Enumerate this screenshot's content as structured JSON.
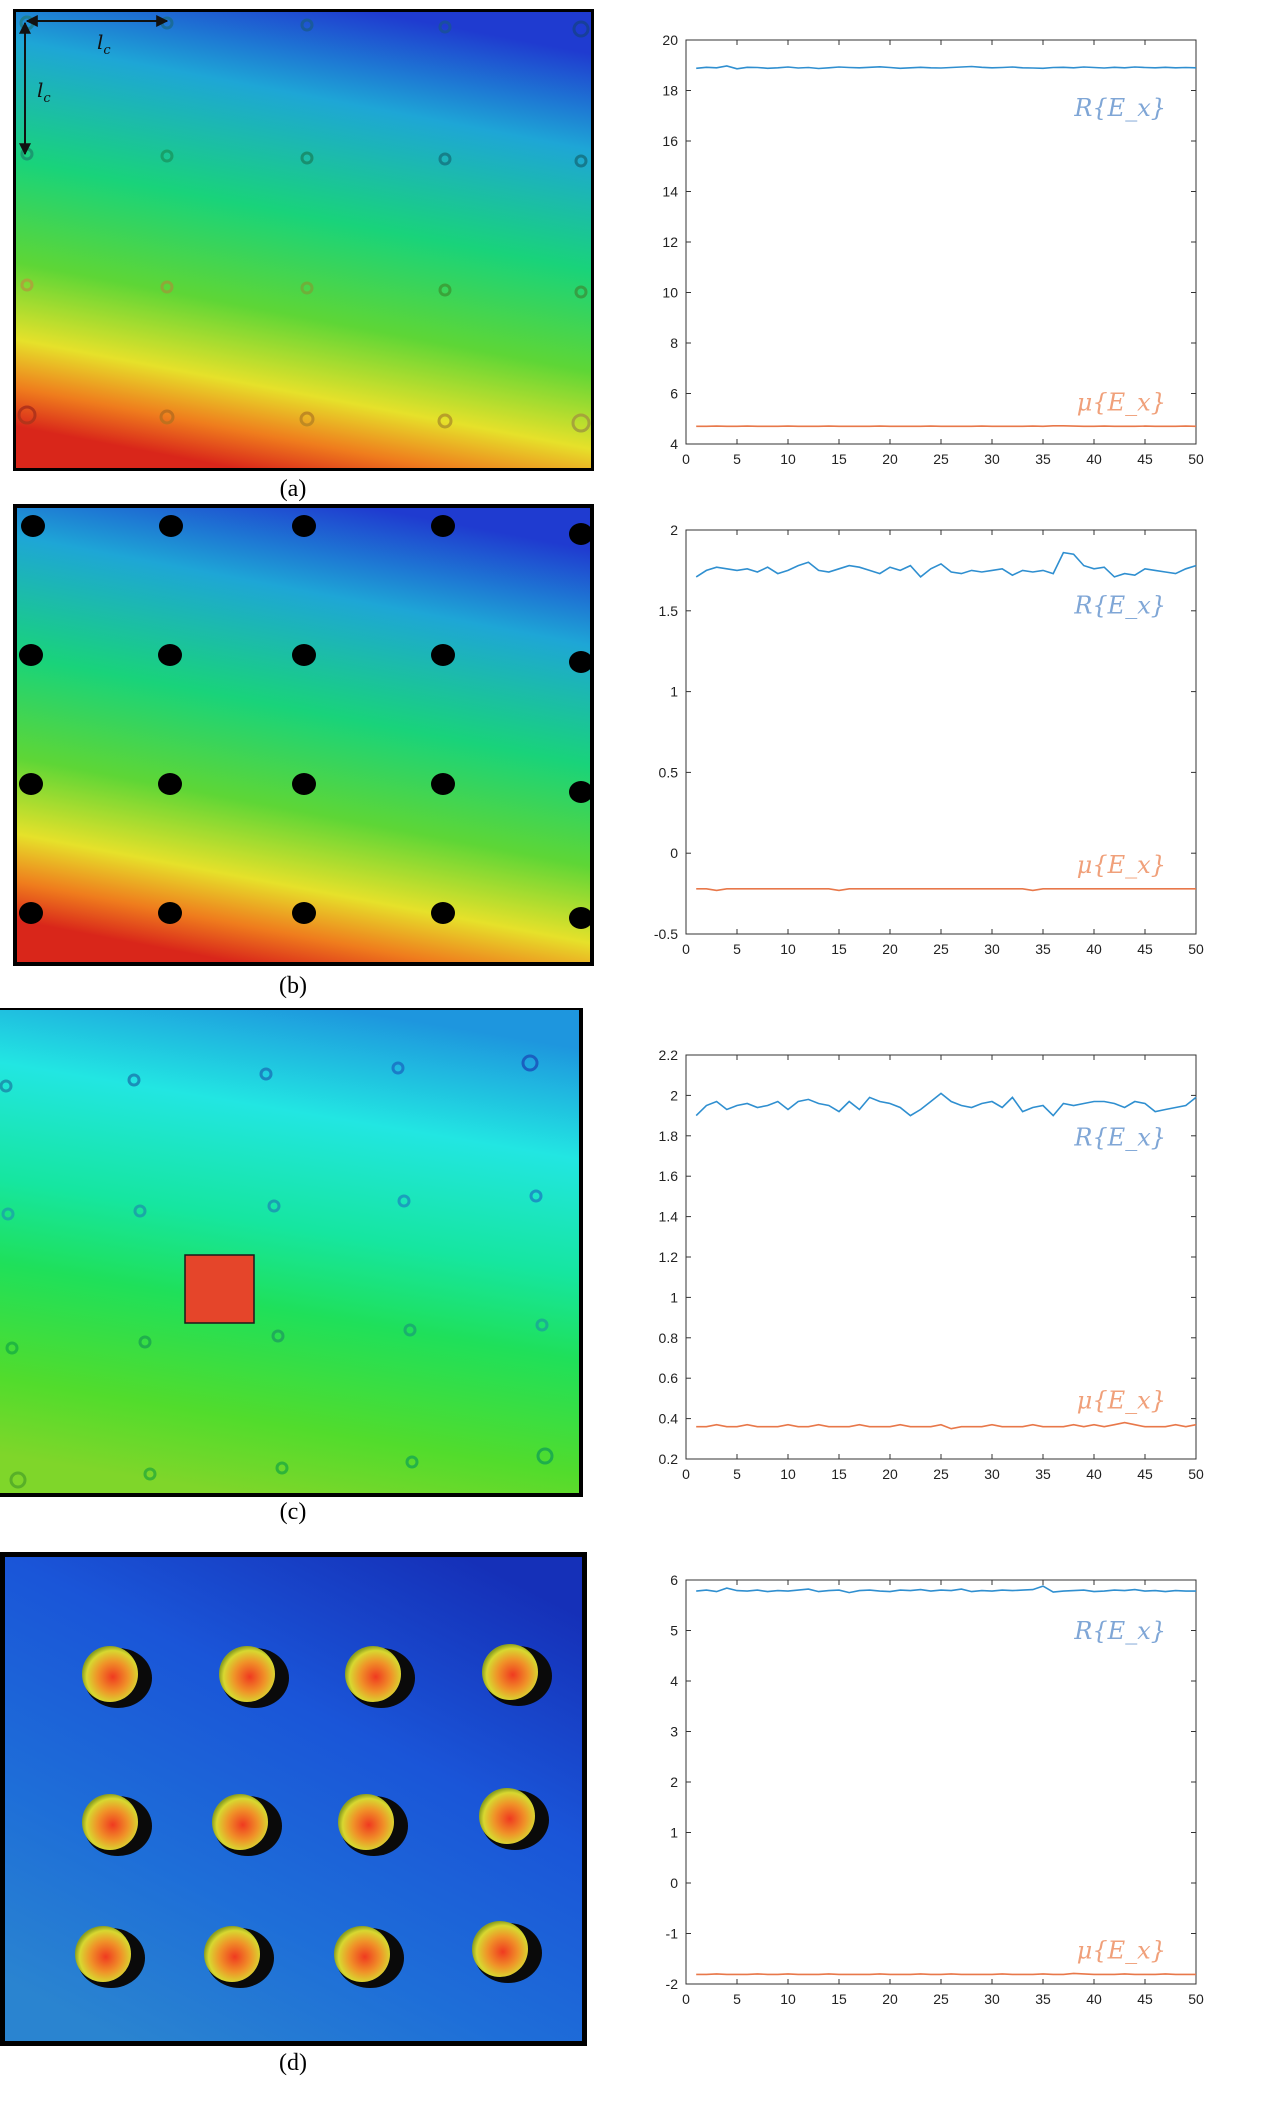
{
  "colors": {
    "R_line": "#2f8fd0",
    "mu_line": "#e8784a",
    "R_text": "#7fa6d6",
    "mu_text": "#f0a07a"
  },
  "panels": [
    {
      "caption": "(a)",
      "heatmap_annotation": {
        "horizontal": "l_c",
        "vertical": "l_c"
      },
      "heatmap_features": "21 small rings (5 columns x 4 rows + 1), blue-green-yellow-red gradient",
      "chart_data": {
        "type": "line",
        "xlim": [
          0,
          50
        ],
        "ylim": [
          4,
          20
        ],
        "xticks": [
          0,
          5,
          10,
          15,
          20,
          25,
          30,
          35,
          40,
          45,
          50
        ],
        "yticks": [
          4,
          6,
          8,
          10,
          12,
          14,
          16,
          18,
          20
        ],
        "ytick_labels": [
          "4",
          "6",
          "8",
          "10",
          "12",
          "14",
          "16",
          "18",
          "20"
        ],
        "x": [
          1,
          2,
          3,
          4,
          5,
          6,
          7,
          8,
          9,
          10,
          11,
          12,
          13,
          14,
          15,
          16,
          17,
          18,
          19,
          20,
          21,
          22,
          23,
          24,
          25,
          26,
          27,
          28,
          29,
          30,
          31,
          32,
          33,
          34,
          35,
          36,
          37,
          38,
          39,
          40,
          41,
          42,
          43,
          44,
          45,
          46,
          47,
          48,
          49,
          50
        ],
        "series": [
          {
            "name": "R{E_x}",
            "color": "#2f8fd0",
            "values": [
              18.88,
              18.92,
              18.9,
              18.97,
              18.86,
              18.92,
              18.91,
              18.88,
              18.9,
              18.93,
              18.89,
              18.91,
              18.87,
              18.9,
              18.93,
              18.91,
              18.9,
              18.92,
              18.94,
              18.91,
              18.88,
              18.9,
              18.92,
              18.9,
              18.89,
              18.91,
              18.93,
              18.95,
              18.92,
              18.9,
              18.91,
              18.93,
              18.9,
              18.89,
              18.88,
              18.91,
              18.92,
              18.9,
              18.93,
              18.91,
              18.89,
              18.92,
              18.9,
              18.93,
              18.91,
              18.9,
              18.92,
              18.9,
              18.91,
              18.9
            ]
          },
          {
            "name": "μ{E_x}",
            "color": "#e8784a",
            "values": [
              4.7,
              4.7,
              4.71,
              4.7,
              4.7,
              4.71,
              4.7,
              4.7,
              4.7,
              4.71,
              4.7,
              4.7,
              4.7,
              4.71,
              4.7,
              4.7,
              4.7,
              4.7,
              4.71,
              4.7,
              4.7,
              4.7,
              4.7,
              4.71,
              4.7,
              4.7,
              4.7,
              4.7,
              4.71,
              4.7,
              4.7,
              4.7,
              4.7,
              4.71,
              4.7,
              4.72,
              4.72,
              4.71,
              4.7,
              4.7,
              4.71,
              4.7,
              4.7,
              4.7,
              4.71,
              4.7,
              4.7,
              4.7,
              4.71,
              4.7
            ]
          }
        ],
        "annotations": [
          "R{E_x}",
          "μ{E_x}"
        ]
      }
    },
    {
      "caption": "(b)",
      "heatmap_features": "20 black filled dots (5 columns x 4 rows), blue-green-yellow-red gradient",
      "chart_data": {
        "type": "line",
        "xlim": [
          0,
          50
        ],
        "ylim": [
          -0.5,
          2
        ],
        "xticks": [
          0,
          5,
          10,
          15,
          20,
          25,
          30,
          35,
          40,
          45,
          50
        ],
        "yticks": [
          -0.5,
          0,
          0.5,
          1,
          1.5,
          2
        ],
        "ytick_labels": [
          "-0.5",
          "0",
          "0.5",
          "1",
          "1.5",
          "2"
        ],
        "x": [
          1,
          2,
          3,
          4,
          5,
          6,
          7,
          8,
          9,
          10,
          11,
          12,
          13,
          14,
          15,
          16,
          17,
          18,
          19,
          20,
          21,
          22,
          23,
          24,
          25,
          26,
          27,
          28,
          29,
          30,
          31,
          32,
          33,
          34,
          35,
          36,
          37,
          38,
          39,
          40,
          41,
          42,
          43,
          44,
          45,
          46,
          47,
          48,
          49,
          50
        ],
        "series": [
          {
            "name": "R{E_x}",
            "color": "#2f8fd0",
            "values": [
              1.71,
              1.75,
              1.77,
              1.76,
              1.75,
              1.76,
              1.74,
              1.77,
              1.73,
              1.75,
              1.78,
              1.8,
              1.75,
              1.74,
              1.76,
              1.78,
              1.77,
              1.75,
              1.73,
              1.77,
              1.75,
              1.78,
              1.71,
              1.76,
              1.79,
              1.74,
              1.73,
              1.75,
              1.74,
              1.75,
              1.76,
              1.72,
              1.75,
              1.74,
              1.75,
              1.73,
              1.86,
              1.85,
              1.78,
              1.76,
              1.77,
              1.71,
              1.73,
              1.72,
              1.76,
              1.75,
              1.74,
              1.73,
              1.76,
              1.78
            ]
          },
          {
            "name": "μ{E_x}",
            "color": "#e8784a",
            "values": [
              -0.22,
              -0.22,
              -0.23,
              -0.22,
              -0.22,
              -0.22,
              -0.22,
              -0.22,
              -0.22,
              -0.22,
              -0.22,
              -0.22,
              -0.22,
              -0.22,
              -0.23,
              -0.22,
              -0.22,
              -0.22,
              -0.22,
              -0.22,
              -0.22,
              -0.22,
              -0.22,
              -0.22,
              -0.22,
              -0.22,
              -0.22,
              -0.22,
              -0.22,
              -0.22,
              -0.22,
              -0.22,
              -0.22,
              -0.23,
              -0.22,
              -0.22,
              -0.22,
              -0.22,
              -0.22,
              -0.22,
              -0.22,
              -0.22,
              -0.22,
              -0.22,
              -0.22,
              -0.22,
              -0.22,
              -0.22,
              -0.22,
              -0.22
            ]
          }
        ],
        "annotations": [
          "R{E_x}",
          "μ{E_x}"
        ]
      }
    },
    {
      "caption": "(c)",
      "heatmap_features": "scattered small rings and an orange-red square, cyan-green gradient",
      "chart_data": {
        "type": "line",
        "xlim": [
          0,
          50
        ],
        "ylim": [
          0.2,
          2.2
        ],
        "xticks": [
          0,
          5,
          10,
          15,
          20,
          25,
          30,
          35,
          40,
          45,
          50
        ],
        "yticks": [
          0.2,
          0.4,
          0.6,
          0.8,
          1,
          1.2,
          1.4,
          1.6,
          1.8,
          2,
          2.2
        ],
        "ytick_labels": [
          "0.2",
          "0.4",
          "0.6",
          "0.8",
          "1",
          "1.2",
          "1.4",
          "1.6",
          "1.8",
          "2",
          "2.2"
        ],
        "x": [
          1,
          2,
          3,
          4,
          5,
          6,
          7,
          8,
          9,
          10,
          11,
          12,
          13,
          14,
          15,
          16,
          17,
          18,
          19,
          20,
          21,
          22,
          23,
          24,
          25,
          26,
          27,
          28,
          29,
          30,
          31,
          32,
          33,
          34,
          35,
          36,
          37,
          38,
          39,
          40,
          41,
          42,
          43,
          44,
          45,
          46,
          47,
          48,
          49,
          50
        ],
        "series": [
          {
            "name": "R{E_x}",
            "color": "#2f8fd0",
            "values": [
              1.9,
              1.95,
              1.97,
              1.93,
              1.95,
              1.96,
              1.94,
              1.95,
              1.97,
              1.93,
              1.97,
              1.98,
              1.96,
              1.95,
              1.92,
              1.97,
              1.93,
              1.99,
              1.97,
              1.96,
              1.94,
              1.9,
              1.93,
              1.97,
              2.01,
              1.97,
              1.95,
              1.94,
              1.96,
              1.97,
              1.94,
              1.99,
              1.92,
              1.94,
              1.95,
              1.9,
              1.96,
              1.95,
              1.96,
              1.97,
              1.97,
              1.96,
              1.94,
              1.97,
              1.96,
              1.92,
              1.93,
              1.94,
              1.95,
              1.99
            ]
          },
          {
            "name": "μ{E_x}",
            "color": "#e8784a",
            "values": [
              0.36,
              0.36,
              0.37,
              0.36,
              0.36,
              0.37,
              0.36,
              0.36,
              0.36,
              0.37,
              0.36,
              0.36,
              0.37,
              0.36,
              0.36,
              0.36,
              0.37,
              0.36,
              0.36,
              0.36,
              0.37,
              0.36,
              0.36,
              0.36,
              0.37,
              0.35,
              0.36,
              0.36,
              0.36,
              0.37,
              0.36,
              0.36,
              0.36,
              0.37,
              0.36,
              0.36,
              0.36,
              0.37,
              0.36,
              0.37,
              0.36,
              0.37,
              0.38,
              0.37,
              0.36,
              0.36,
              0.36,
              0.37,
              0.36,
              0.37
            ]
          }
        ],
        "annotations": [
          "R{E_x}",
          "μ{E_x}"
        ]
      }
    },
    {
      "caption": "(d)",
      "heatmap_features": "12 raised yellow-orange domes (4 columns x 3 rows), blue background",
      "chart_data": {
        "type": "line",
        "xlim": [
          0,
          50
        ],
        "ylim": [
          -2,
          6
        ],
        "xticks": [
          0,
          5,
          10,
          15,
          20,
          25,
          30,
          35,
          40,
          45,
          50
        ],
        "yticks": [
          -2,
          -1,
          0,
          1,
          2,
          3,
          4,
          5,
          6
        ],
        "ytick_labels": [
          "-2",
          "-1",
          "0",
          "1",
          "2",
          "3",
          "4",
          "5",
          "6"
        ],
        "x": [
          1,
          2,
          3,
          4,
          5,
          6,
          7,
          8,
          9,
          10,
          11,
          12,
          13,
          14,
          15,
          16,
          17,
          18,
          19,
          20,
          21,
          22,
          23,
          24,
          25,
          26,
          27,
          28,
          29,
          30,
          31,
          32,
          33,
          34,
          35,
          36,
          37,
          38,
          39,
          40,
          41,
          42,
          43,
          44,
          45,
          46,
          47,
          48,
          49,
          50
        ],
        "series": [
          {
            "name": "R{E_x}",
            "color": "#2f8fd0",
            "values": [
              5.78,
              5.8,
              5.77,
              5.84,
              5.79,
              5.78,
              5.8,
              5.77,
              5.79,
              5.78,
              5.8,
              5.82,
              5.77,
              5.79,
              5.8,
              5.75,
              5.79,
              5.8,
              5.78,
              5.77,
              5.8,
              5.79,
              5.81,
              5.78,
              5.8,
              5.79,
              5.82,
              5.77,
              5.79,
              5.78,
              5.8,
              5.79,
              5.8,
              5.81,
              5.88,
              5.76,
              5.78,
              5.79,
              5.8,
              5.77,
              5.78,
              5.8,
              5.79,
              5.81,
              5.78,
              5.79,
              5.77,
              5.79,
              5.78,
              5.78
            ]
          },
          {
            "name": "μ{E_x}",
            "color": "#e8784a",
            "values": [
              -1.81,
              -1.81,
              -1.8,
              -1.81,
              -1.81,
              -1.81,
              -1.8,
              -1.81,
              -1.81,
              -1.8,
              -1.81,
              -1.81,
              -1.81,
              -1.8,
              -1.81,
              -1.81,
              -1.81,
              -1.81,
              -1.8,
              -1.81,
              -1.81,
              -1.81,
              -1.8,
              -1.81,
              -1.81,
              -1.8,
              -1.81,
              -1.81,
              -1.81,
              -1.81,
              -1.8,
              -1.81,
              -1.81,
              -1.81,
              -1.8,
              -1.81,
              -1.81,
              -1.79,
              -1.8,
              -1.81,
              -1.81,
              -1.81,
              -1.8,
              -1.81,
              -1.81,
              -1.81,
              -1.8,
              -1.81,
              -1.81,
              -1.81
            ]
          }
        ],
        "annotations": [
          "R{E_x}",
          "μ{E_x}"
        ]
      }
    }
  ]
}
